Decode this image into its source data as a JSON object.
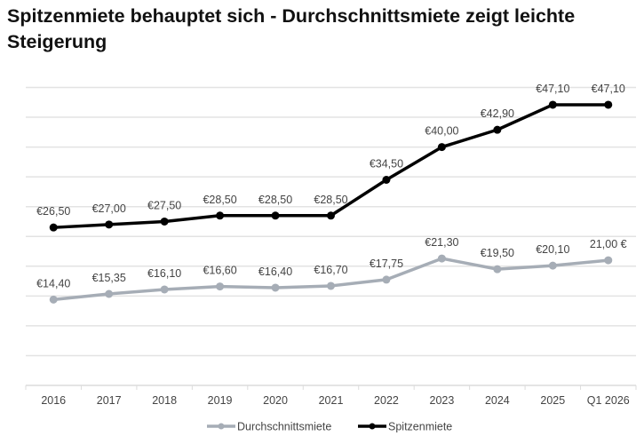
{
  "chart_data": {
    "type": "line",
    "title": "Spitzenmiete behauptet sich - Durchschnittsmiete zeigt leichte Steigerung",
    "xlabel": "",
    "ylabel": "",
    "categories": [
      "2016",
      "2017",
      "2018",
      "2019",
      "2020",
      "2021",
      "2022",
      "2023",
      "2024",
      "2025",
      "Q1 2026"
    ],
    "ylim": [
      0,
      50
    ],
    "ygrid_step": 5,
    "grid": true,
    "y_tick_labels_visible": false,
    "legend_position": "bottom-center",
    "series": [
      {
        "name": "Durchschnittsmiete",
        "color": "#A6ADB6",
        "values": [
          14.4,
          15.35,
          16.1,
          16.6,
          16.4,
          16.7,
          17.75,
          21.3,
          19.5,
          20.1,
          21.0
        ],
        "labels": [
          "€14,40",
          "€15,35",
          "€16,10",
          "€16,60",
          "€16,40",
          "€16,70",
          "€17,75",
          "€21,30",
          "€19,50",
          "€20,10",
          "21,00 €"
        ]
      },
      {
        "name": "Spitzenmiete",
        "color": "#000000",
        "values": [
          26.5,
          27.0,
          27.5,
          28.5,
          28.5,
          28.5,
          34.5,
          40.0,
          42.9,
          47.1,
          47.1
        ],
        "labels": [
          "€26,50",
          "€27,00",
          "€27,50",
          "€28,50",
          "€28,50",
          "€28,50",
          "€34,50",
          "€40,00",
          "€42,90",
          "€47,10",
          "€47,10"
        ]
      }
    ]
  }
}
